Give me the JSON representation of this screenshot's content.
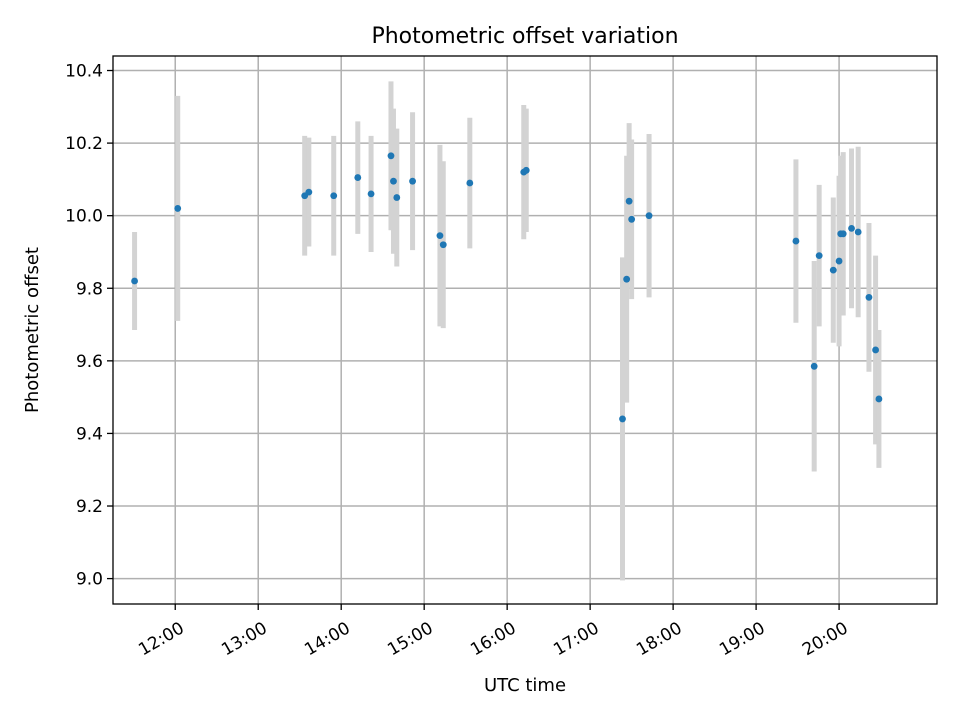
{
  "chart_data": {
    "type": "scatter",
    "title": "Photometric offset variation",
    "xlabel": "UTC time",
    "ylabel": "Photometric offset",
    "x_axis": {
      "type": "time",
      "unit": "hours",
      "range": [
        11.25,
        21.18
      ],
      "ticks": [
        {
          "value": 12,
          "label": "12:00"
        },
        {
          "value": 13,
          "label": "13:00"
        },
        {
          "value": 14,
          "label": "14:00"
        },
        {
          "value": 15,
          "label": "15:00"
        },
        {
          "value": 16,
          "label": "16:00"
        },
        {
          "value": 17,
          "label": "17:00"
        },
        {
          "value": 18,
          "label": "18:00"
        },
        {
          "value": 19,
          "label": "19:00"
        },
        {
          "value": 20,
          "label": "20:00"
        }
      ]
    },
    "y_axis": {
      "range": [
        8.93,
        10.44
      ],
      "ticks": [
        {
          "value": 9.0,
          "label": "9.0"
        },
        {
          "value": 9.2,
          "label": "9.2"
        },
        {
          "value": 9.4,
          "label": "9.4"
        },
        {
          "value": 9.6,
          "label": "9.6"
        },
        {
          "value": 9.8,
          "label": "9.8"
        },
        {
          "value": 10.0,
          "label": "10.0"
        },
        {
          "value": 10.2,
          "label": "10.2"
        },
        {
          "value": 10.4,
          "label": "10.4"
        }
      ]
    },
    "grid": true,
    "colors": {
      "point": "#1f77b4",
      "errorbar": "#d3d3d3"
    },
    "points": [
      {
        "x": 11.51,
        "y": 9.82,
        "yerr": 0.135
      },
      {
        "x": 12.03,
        "y": 10.02,
        "yerr": 0.31
      },
      {
        "x": 13.56,
        "y": 10.055,
        "yerr": 0.165
      },
      {
        "x": 13.61,
        "y": 10.065,
        "yerr": 0.15
      },
      {
        "x": 13.91,
        "y": 10.055,
        "yerr": 0.165
      },
      {
        "x": 14.2,
        "y": 10.105,
        "yerr": 0.155
      },
      {
        "x": 14.36,
        "y": 10.06,
        "yerr": 0.16
      },
      {
        "x": 14.6,
        "y": 10.165,
        "yerr": 0.205
      },
      {
        "x": 14.63,
        "y": 10.095,
        "yerr": 0.2
      },
      {
        "x": 14.67,
        "y": 10.05,
        "yerr": 0.19
      },
      {
        "x": 14.86,
        "y": 10.095,
        "yerr": 0.19
      },
      {
        "x": 15.19,
        "y": 9.945,
        "yerr": 0.25
      },
      {
        "x": 15.23,
        "y": 9.92,
        "yerr": 0.23
      },
      {
        "x": 15.55,
        "y": 10.09,
        "yerr": 0.18
      },
      {
        "x": 16.2,
        "y": 10.12,
        "yerr": 0.185
      },
      {
        "x": 16.23,
        "y": 10.125,
        "yerr": 0.17
      },
      {
        "x": 17.39,
        "y": 9.44,
        "yerr": 0.445
      },
      {
        "x": 17.44,
        "y": 9.825,
        "yerr": 0.34
      },
      {
        "x": 17.47,
        "y": 10.04,
        "yerr": 0.215
      },
      {
        "x": 17.5,
        "y": 9.99,
        "yerr": 0.22
      },
      {
        "x": 17.71,
        "y": 10.0,
        "yerr": 0.225
      },
      {
        "x": 19.48,
        "y": 9.93,
        "yerr": 0.225
      },
      {
        "x": 19.7,
        "y": 9.585,
        "yerr": 0.29
      },
      {
        "x": 19.76,
        "y": 9.89,
        "yerr": 0.195
      },
      {
        "x": 19.93,
        "y": 9.85,
        "yerr": 0.2
      },
      {
        "x": 20.0,
        "y": 9.875,
        "yerr": 0.235
      },
      {
        "x": 20.02,
        "y": 9.95,
        "yerr": 0.215
      },
      {
        "x": 20.05,
        "y": 9.95,
        "yerr": 0.225
      },
      {
        "x": 20.15,
        "y": 9.965,
        "yerr": 0.22
      },
      {
        "x": 20.23,
        "y": 9.955,
        "yerr": 0.235
      },
      {
        "x": 20.36,
        "y": 9.775,
        "yerr": 0.205
      },
      {
        "x": 20.44,
        "y": 9.63,
        "yerr": 0.26
      },
      {
        "x": 20.48,
        "y": 9.495,
        "yerr": 0.19
      }
    ]
  }
}
